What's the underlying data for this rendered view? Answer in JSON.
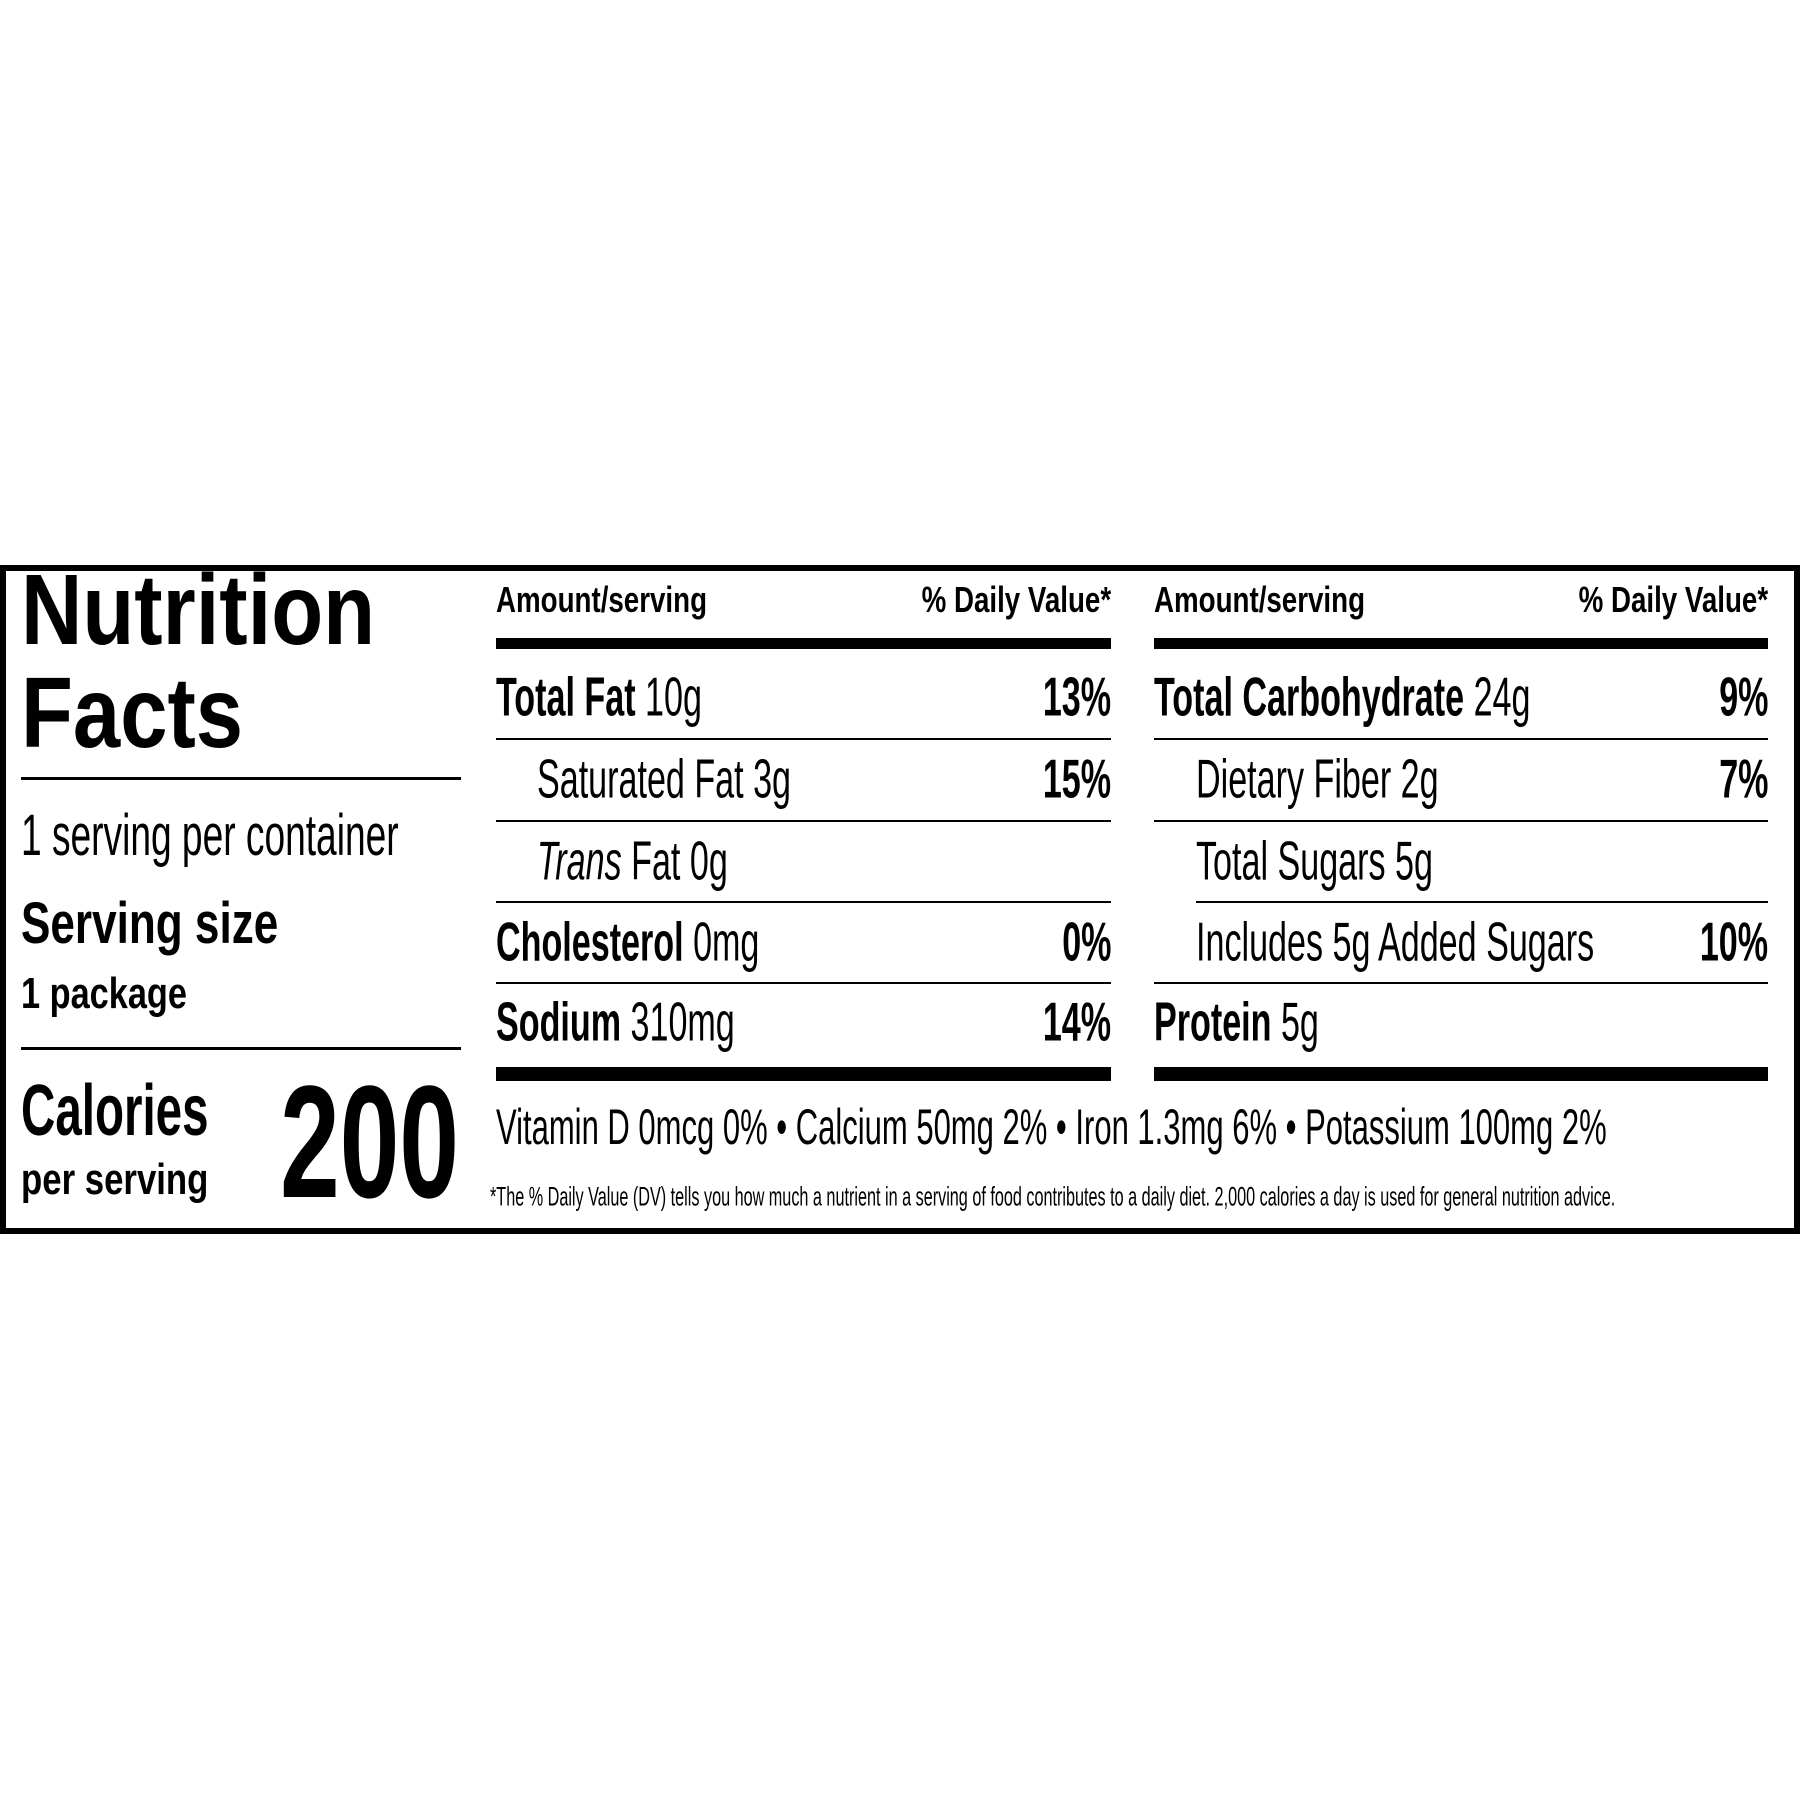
{
  "title_line1": "Nutrition",
  "title_line2": "Facts",
  "servings_per_container": "1 serving per container",
  "serving_size_label": "Serving size",
  "serving_size": "1 package",
  "calories_label": "Calories",
  "calories_sub": "per serving",
  "calories": 200,
  "columns": [
    {
      "header_amount": "Amount/serving",
      "header_dv": "% Daily Value*",
      "rows": [
        {
          "name": "Total Fat",
          "amount": "10g",
          "dv": "13%"
        },
        {
          "name": "Saturated Fat",
          "amount": "3g",
          "dv": "15%"
        },
        {
          "name_italic": "Trans",
          "name": "Fat",
          "amount": "0g"
        },
        {
          "name": "Cholesterol",
          "amount": "0mg",
          "dv": "0%"
        },
        {
          "name": "Sodium",
          "amount": "310mg",
          "dv": "14%"
        }
      ]
    },
    {
      "header_amount": "Amount/serving",
      "header_dv": "% Daily Value*",
      "rows": [
        {
          "name": "Total Carbohydrate",
          "amount": "24g",
          "dv": "9%"
        },
        {
          "name": "Dietary Fiber",
          "amount": "2g",
          "dv": "7%"
        },
        {
          "name": "Total Sugars",
          "amount": "5g"
        },
        {
          "name": "Includes 5g Added Sugars",
          "dv": "10%"
        },
        {
          "name": "Protein",
          "amount": "5g"
        }
      ]
    }
  ],
  "vitamins": [
    "Vitamin D 0mcg 0%",
    "Calcium 50mg 2%",
    "Iron 1.3mg 6%",
    "Potassium 100mg 2%"
  ],
  "separator": "•",
  "footnote": "*The % Daily Value (DV) tells you how much a nutrient in a serving of food contributes to a daily diet. 2,000 calories a day is used for general nutrition advice."
}
